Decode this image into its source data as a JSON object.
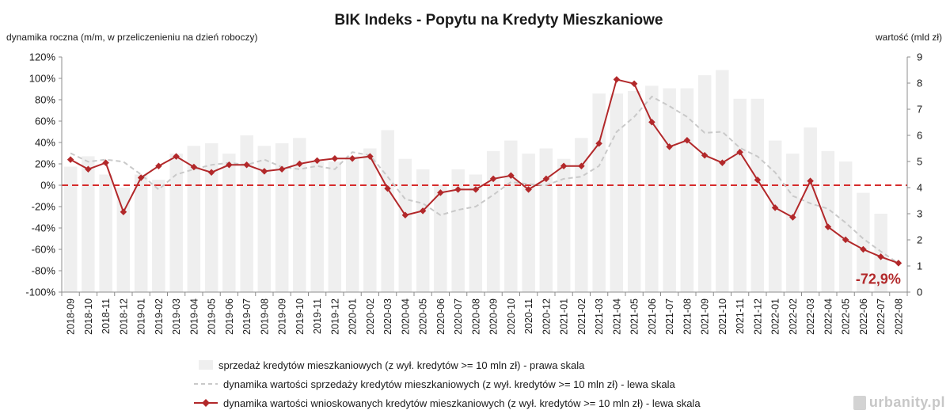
{
  "chart_data": {
    "type": "bar+line",
    "title": "BIK Indeks - Popytu na Kredyty Mieszkaniowe",
    "y_left_label": "dynamika roczna (m/m, w przeliczenieniu na dzień roboczy)",
    "y_right_label": "wartość (mld zł)",
    "y_left_range": [
      -100,
      120
    ],
    "y_left_ticks": [
      "-100%",
      "-80%",
      "-60%",
      "-40%",
      "-20%",
      "0%",
      "20%",
      "40%",
      "60%",
      "80%",
      "100%",
      "120%"
    ],
    "y_right_range": [
      0,
      9
    ],
    "y_right_ticks": [
      "0",
      "1",
      "2",
      "3",
      "4",
      "5",
      "6",
      "7",
      "8",
      "9"
    ],
    "grid": false,
    "reference_line": {
      "y_left": 0,
      "style": "dashed",
      "color": "#d62b2b"
    },
    "categories": [
      "2018-09",
      "2018-10",
      "2018-11",
      "2018-12",
      "2019-01",
      "2019-02",
      "2019-03",
      "2019-04",
      "2019-05",
      "2019-06",
      "2019-07",
      "2019-08",
      "2019-09",
      "2019-10",
      "2019-11",
      "2019-12",
      "2020-01",
      "2020-02",
      "2020-03",
      "2020-04",
      "2020-05",
      "2020-06",
      "2020-07",
      "2020-08",
      "2020-09",
      "2020-10",
      "2020-11",
      "2020-12",
      "2021-01",
      "2021-02",
      "2021-03",
      "2021-04",
      "2021-05",
      "2021-06",
      "2021-07",
      "2021-08",
      "2021-09",
      "2021-10",
      "2021-11",
      "2021-12",
      "2022-01",
      "2022-02",
      "2022-03",
      "2022-04",
      "2022-05",
      "2022-06",
      "2022-07",
      "2022-08"
    ],
    "series": [
      {
        "name": "sprzedaż kredytów mieszkaniowych (z wył. kredytów >= 10 mln zł) - prawa skala",
        "kind": "bar",
        "axis": "right",
        "color": "#efefef",
        "values": [
          4.8,
          5.2,
          4.5,
          4.0,
          4.5,
          4.3,
          5.3,
          5.6,
          5.7,
          5.3,
          6.0,
          5.6,
          5.7,
          5.9,
          5.0,
          5.0,
          5.2,
          5.5,
          6.2,
          5.1,
          4.7,
          4.1,
          4.7,
          4.5,
          5.4,
          5.8,
          5.3,
          5.5,
          5.1,
          5.9,
          7.6,
          7.6,
          7.7,
          7.9,
          7.8,
          7.8,
          8.3,
          8.5,
          7.4,
          7.4,
          5.8,
          5.3,
          6.3,
          5.4,
          5.0,
          3.8,
          3.0,
          0.0
        ]
      },
      {
        "name": "dynamika wartości sprzedaży kredytów mieszkaniowych (z wył. kredytów >= 10 mln zł) - lewa skala",
        "kind": "line-dashed",
        "axis": "left",
        "color": "#c9c9c9",
        "values": [
          30,
          22,
          24,
          22,
          10,
          -4,
          10,
          15,
          19,
          21,
          19,
          24,
          17,
          15,
          18,
          15,
          31,
          28,
          8,
          -13,
          -17,
          -28,
          -23,
          -20,
          -9,
          3,
          1,
          0,
          6,
          8,
          18,
          50,
          64,
          83,
          74,
          64,
          49,
          50,
          35,
          27,
          12,
          -10,
          -17,
          -22,
          -35,
          -50,
          -62,
          -73
        ]
      },
      {
        "name": "dynamika wartości wnioskowanych kredytów mieszkaniowych (z wył. kredytów >= 10 mln zł) - lewa skala",
        "kind": "line-markers",
        "axis": "left",
        "color": "#b2282a",
        "values": [
          24,
          15,
          21,
          -25,
          7,
          18,
          27,
          17,
          12,
          19,
          19,
          13,
          15,
          20,
          23,
          25,
          25,
          27,
          -3,
          -28,
          -24,
          -7,
          -4,
          -4,
          6,
          9,
          -4,
          6,
          18,
          18,
          39,
          99,
          95,
          59,
          36,
          42,
          28,
          21,
          31,
          5,
          -21,
          -30,
          4,
          -39,
          -51,
          -60,
          -67,
          -72.9
        ]
      }
    ],
    "annotation": {
      "text": "-72,9%",
      "color": "#b2282a"
    }
  },
  "watermark": {
    "text": "urbanity.pl"
  }
}
